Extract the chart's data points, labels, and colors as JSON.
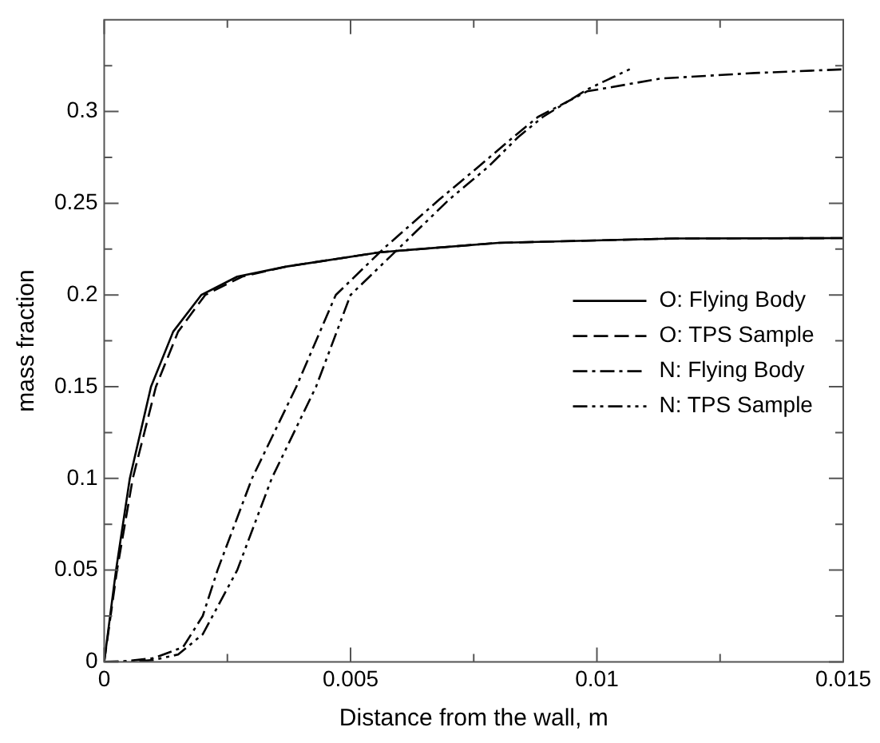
{
  "chart_data": {
    "type": "line",
    "xlabel": "Distance from the wall, m",
    "ylabel": "mass fraction",
    "xlim": [
      0,
      0.015
    ],
    "xticks": [
      0,
      {
        "value": 0.0025,
        "label": null
      },
      0.005,
      {
        "value": 0.0075,
        "label": null
      },
      0.01,
      {
        "value": 0.0125,
        "label": null
      },
      0.015
    ],
    "ylim": [
      0,
      0.35
    ],
    "yticks": [
      0,
      {
        "value": 0.025,
        "label": null
      },
      0.05,
      {
        "value": 0.075,
        "label": null
      },
      0.1,
      {
        "value": 0.125,
        "label": null
      },
      0.15,
      {
        "value": 0.175,
        "label": null
      },
      0.2,
      {
        "value": 0.225,
        "label": null
      },
      0.25,
      {
        "value": 0.275,
        "label": null
      },
      0.3,
      {
        "value": 0.325,
        "label": null
      }
    ],
    "grid": false,
    "legend": "right",
    "marker": "none",
    "series": [
      {
        "name": "O: Flying Body",
        "color": "#000000",
        "line_style": "solid",
        "x": [
          0,
          0.00024,
          0.00052,
          0.00095,
          0.0014,
          0.00197,
          0.0027,
          0.0037,
          0.0056,
          0.008,
          0.0116,
          0.015
        ],
        "values": [
          0,
          0.05,
          0.1,
          0.15,
          0.18,
          0.2,
          0.21,
          0.2155,
          0.2233,
          0.2284,
          0.2308,
          0.231
        ]
      },
      {
        "name": "O: TPS Sample",
        "color": "#000000",
        "line_style": "dashed",
        "x": [
          0,
          0.00026,
          0.00058,
          0.00105,
          0.0015,
          0.00205,
          0.0028,
          0.0037,
          0.0056,
          0.008,
          0.0116,
          0.015
        ],
        "values": [
          0,
          0.05,
          0.1,
          0.15,
          0.18,
          0.2,
          0.21,
          0.2155,
          0.2233,
          0.2284,
          0.2308,
          0.231
        ]
      },
      {
        "name": "N: Flying Body",
        "color": "#000000",
        "line_style": "dashdot",
        "x": [
          0,
          0.0005,
          0.001,
          0.0016,
          0.002,
          0.0023,
          0.003,
          0.0039,
          0.0047,
          0.0057,
          0.0068,
          0.0076,
          0.0083,
          0.0088,
          0.0098,
          0.0113,
          0.0132,
          0.015
        ],
        "values": [
          0,
          0.0005,
          0.002,
          0.008,
          0.025,
          0.05,
          0.1,
          0.15,
          0.2,
          0.226,
          0.252,
          0.27,
          0.286,
          0.297,
          0.311,
          0.318,
          0.321,
          0.323
        ]
      },
      {
        "name": "N: TPS Sample",
        "color": "#000000",
        "line_style": "dashdotdot",
        "x": [
          0,
          0.0005,
          0.001,
          0.0015,
          0.002,
          0.0027,
          0.0034,
          0.0043,
          0.005,
          0.006,
          0.007,
          0.0078,
          0.0084,
          0.0089,
          0.0098,
          0.0107
        ],
        "values": [
          0,
          0,
          0.001,
          0.004,
          0.015,
          0.05,
          0.1,
          0.15,
          0.2,
          0.226,
          0.252,
          0.27,
          0.286,
          0.297,
          0.312,
          0.3235
        ]
      }
    ]
  }
}
